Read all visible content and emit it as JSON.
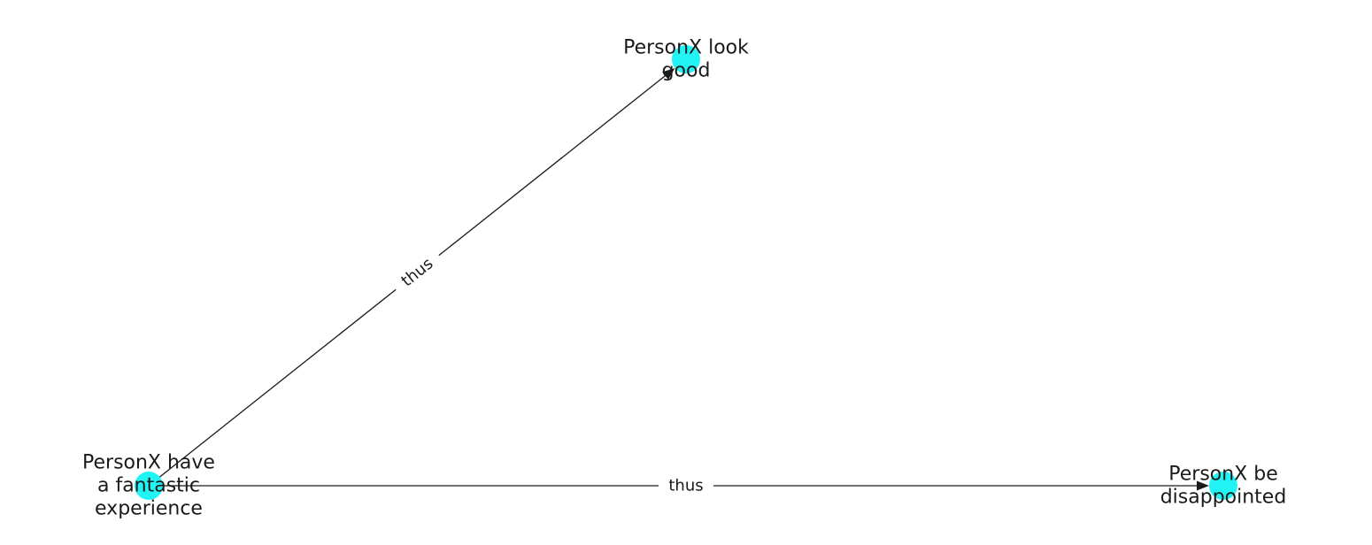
{
  "colors": {
    "node_fill": "#22f4f6",
    "edge": "#1a1a1a",
    "background": "#ffffff"
  },
  "nodes": [
    {
      "id": "n1",
      "name": "node-personx-have-a-fantastic-experience",
      "lines": [
        "PersonX have",
        "a fantastic",
        "experience"
      ]
    },
    {
      "id": "n2",
      "name": "node-personx-look-good",
      "lines": [
        "PersonX look",
        "good"
      ]
    },
    {
      "id": "n3",
      "name": "node-personx-be-disappointed",
      "lines": [
        "PersonX be",
        "disappointed"
      ]
    }
  ],
  "edges": [
    {
      "from": "n1",
      "to": "n2",
      "label": "thus"
    },
    {
      "from": "n1",
      "to": "n3",
      "label": "thus"
    }
  ]
}
